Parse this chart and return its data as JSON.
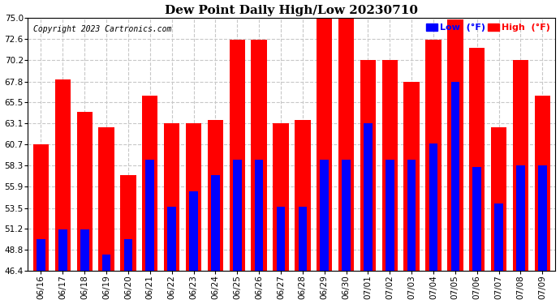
{
  "title": "Dew Point Daily High/Low 20230710",
  "copyright": "Copyright 2023 Cartronics.com",
  "categories": [
    "06/16",
    "06/17",
    "06/18",
    "06/19",
    "06/20",
    "06/21",
    "06/22",
    "06/23",
    "06/24",
    "06/25",
    "06/26",
    "06/27",
    "06/28",
    "06/29",
    "06/30",
    "07/01",
    "07/02",
    "07/03",
    "07/04",
    "07/05",
    "07/06",
    "07/07",
    "07/08",
    "07/09"
  ],
  "high_values": [
    60.7,
    68.0,
    64.4,
    62.6,
    57.2,
    66.2,
    63.1,
    63.1,
    63.5,
    72.5,
    72.5,
    63.1,
    63.5,
    75.2,
    75.2,
    70.2,
    70.2,
    67.8,
    72.5,
    74.8,
    71.6,
    62.6,
    70.2,
    66.2
  ],
  "low_values": [
    50.0,
    51.1,
    51.1,
    48.2,
    50.0,
    59.0,
    53.6,
    55.4,
    57.2,
    59.0,
    59.0,
    53.6,
    53.6,
    59.0,
    59.0,
    63.1,
    59.0,
    59.0,
    60.8,
    67.8,
    58.1,
    54.0,
    58.3,
    58.3
  ],
  "high_color": "#ff0000",
  "low_color": "#0000ff",
  "bg_color": "#ffffff",
  "grid_color": "#c8c8c8",
  "ylim_min": 46.4,
  "ylim_max": 75.0,
  "yticks": [
    46.4,
    48.8,
    51.2,
    53.5,
    55.9,
    58.3,
    60.7,
    63.1,
    65.5,
    67.8,
    70.2,
    72.6,
    75.0
  ],
  "legend_low_label": "Low  (°F)",
  "legend_high_label": "High  (°F)",
  "title_fontsize": 11,
  "tick_fontsize": 7.5,
  "copyright_fontsize": 7
}
